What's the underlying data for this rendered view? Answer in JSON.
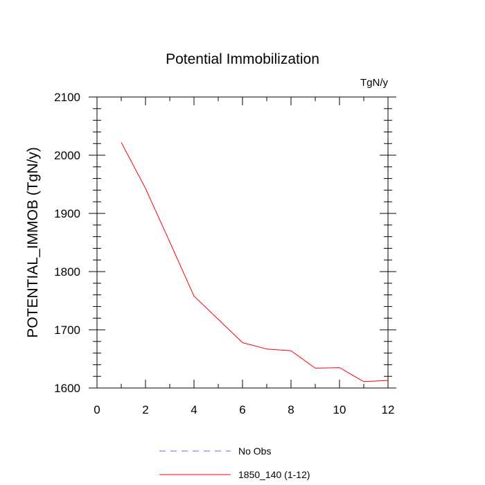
{
  "chart_data": {
    "type": "line",
    "title": "Potential Immobilization",
    "units_label": "TgN/y",
    "xlabel": "",
    "ylabel": "POTENTIAL_IMMOB  (TgN/y)",
    "xlim": [
      0,
      12
    ],
    "ylim": [
      1600,
      2100
    ],
    "x_ticks": [
      0,
      2,
      4,
      6,
      8,
      10,
      12
    ],
    "y_ticks": [
      1600,
      1700,
      1800,
      1900,
      2000,
      2100
    ],
    "x_minor_step": 1,
    "y_minor_step": 20,
    "grid": false,
    "legend_position": "bottom-center",
    "series": [
      {
        "name": "No Obs",
        "color": "#6666ff",
        "dash": "dashed",
        "x": [],
        "values": []
      },
      {
        "name": "1850_140 (1-12)",
        "color": "#ff0000",
        "dash": "solid",
        "x": [
          1,
          2,
          3,
          4,
          5,
          6,
          7,
          8,
          9,
          10,
          11,
          12
        ],
        "values": [
          2022,
          1943,
          1851,
          1758,
          1718,
          1678,
          1667,
          1664,
          1634,
          1635,
          1611,
          1613
        ]
      }
    ]
  }
}
